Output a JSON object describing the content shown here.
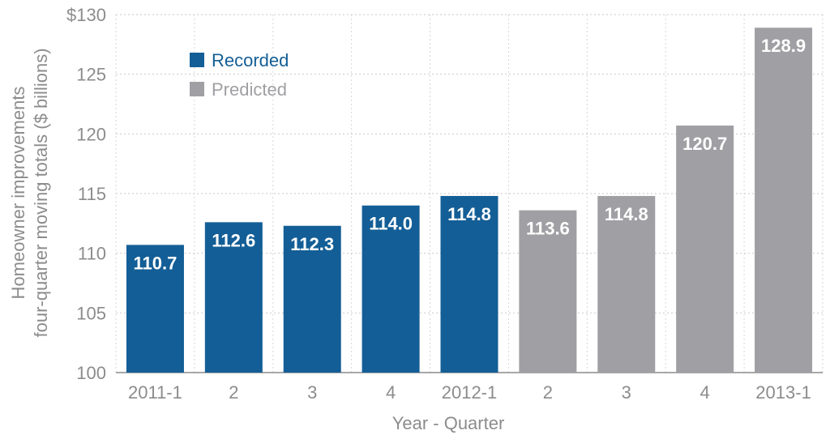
{
  "chart_data": {
    "type": "bar",
    "categories": [
      "2011-1",
      "2",
      "3",
      "4",
      "2012-1",
      "2",
      "3",
      "4",
      "2013-1"
    ],
    "values": [
      110.7,
      112.6,
      112.3,
      114.0,
      114.8,
      113.6,
      114.8,
      120.7,
      128.9
    ],
    "value_labels": [
      "110.7",
      "112.6",
      "112.3",
      "114.0",
      "114.8",
      "113.6",
      "114.8",
      "120.7",
      "128.9"
    ],
    "series_type": [
      "Recorded",
      "Recorded",
      "Recorded",
      "Recorded",
      "Recorded",
      "Predicted",
      "Predicted",
      "Predicted",
      "Predicted"
    ],
    "legend": [
      {
        "name": "Recorded",
        "color": "#135e96"
      },
      {
        "name": "Predicted",
        "color": "#a0a0a4"
      }
    ],
    "ylim": [
      100,
      130
    ],
    "yticks": [
      100,
      105,
      110,
      115,
      120,
      125,
      130
    ],
    "ytick_labels": [
      "100",
      "105",
      "110",
      "115",
      "120",
      "125",
      "$130"
    ],
    "ylabel_line1": "Homeowner improvements",
    "ylabel_line2": "four-quarter moving totals ($ billions)",
    "xlabel": "Year - Quarter",
    "title": "",
    "grid": true,
    "legend_position": "top-left"
  }
}
